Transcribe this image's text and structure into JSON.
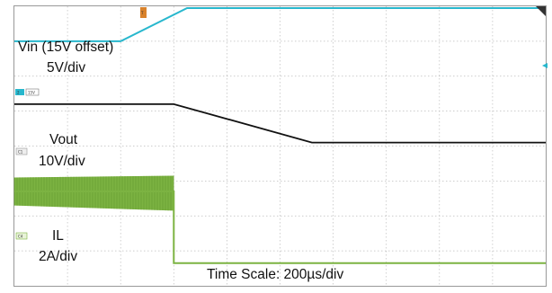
{
  "labels": {
    "vin_line1": "Vin (15V offset)",
    "vin_line2": "5V/div",
    "vout_line1": "Vout",
    "vout_line2": "10V/div",
    "il_line1": "IL",
    "il_line2": "2A/div",
    "timescale": "Time Scale: 200µs/div"
  },
  "markers": {
    "ch2_tag": "2",
    "ch2_offset": "15V",
    "ch1_tag": "C1",
    "ch4_tag": "C4"
  },
  "colors": {
    "vin": "#27b7cd",
    "vout": "#111111",
    "il": "#7cb342",
    "grid": "#bdbdbd",
    "trigger": "#d9822b"
  },
  "chart_data": {
    "type": "line",
    "grid": true,
    "x_divisions": 10,
    "y_divisions": 8,
    "x_range_div": [
      0,
      10
    ],
    "y_range_div": [
      0,
      8
    ],
    "series": [
      {
        "name": "Vin (15V offset)",
        "x": [
          0,
          2.0,
          3.25,
          10
        ],
        "y": [
          7.0,
          7.0,
          7.95,
          7.95
        ]
      },
      {
        "name": "Vout",
        "x": [
          0,
          3.0,
          5.6,
          10
        ],
        "y": [
          5.2,
          5.2,
          4.1,
          4.1
        ]
      },
      {
        "name": "IL",
        "x": [
          0,
          3.0,
          3.0,
          10
        ],
        "y": [
          2.7,
          2.7,
          0.65,
          0.65
        ],
        "ripple_band": {
          "x": [
            0,
            3.0
          ],
          "low": [
            2.3,
            2.15
          ],
          "high": [
            3.1,
            3.15
          ]
        }
      }
    ]
  }
}
